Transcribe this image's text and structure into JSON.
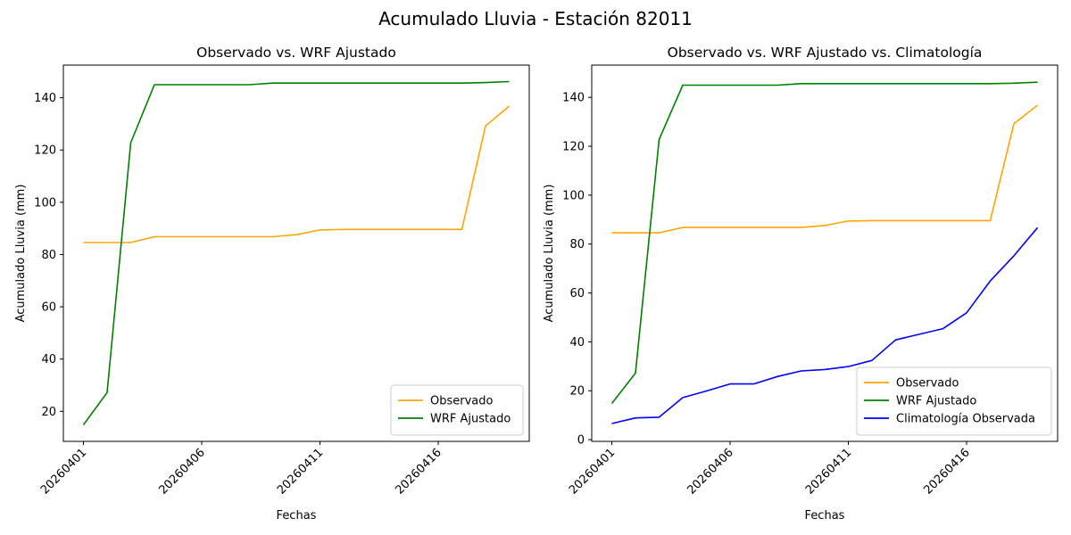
{
  "figure_title": "Acumulado Lluvia - Estación 82011",
  "chart_data": [
    {
      "type": "line",
      "title": "Observado vs. WRF Ajustado",
      "xlabel": "Fechas",
      "ylabel": "Acumulado Lluvia (mm)",
      "x": [
        "20260401",
        "20260402",
        "20260403",
        "20260404",
        "20260405",
        "20260406",
        "20260407",
        "20260408",
        "20260409",
        "20260410",
        "20260411",
        "20260412",
        "20260413",
        "20260414",
        "20260415",
        "20260416",
        "20260417",
        "20260418",
        "20260419"
      ],
      "xticks": [
        "20260401",
        "20260406",
        "20260411",
        "20260416"
      ],
      "yticks": [
        20,
        40,
        60,
        80,
        100,
        120,
        140
      ],
      "ylim": [
        8.5,
        152.5
      ],
      "legend_position": "lower-right",
      "series": [
        {
          "name": "Observado",
          "color": "#ffa500",
          "values": [
            84.6,
            84.6,
            84.6,
            86.8,
            86.8,
            86.8,
            86.8,
            86.8,
            86.8,
            87.6,
            89.4,
            89.6,
            89.6,
            89.6,
            89.6,
            89.6,
            89.6,
            129.2,
            136.8
          ]
        },
        {
          "name": "WRF Ajustado",
          "color": "#008000",
          "values": [
            14.8,
            27.2,
            122.8,
            145.0,
            145.0,
            145.0,
            145.0,
            145.0,
            145.6,
            145.6,
            145.6,
            145.6,
            145.6,
            145.6,
            145.6,
            145.6,
            145.6,
            145.8,
            146.2
          ]
        }
      ]
    },
    {
      "type": "line",
      "title": "Observado vs. WRF Ajustado vs. Climatología",
      "xlabel": "Fechas",
      "ylabel": "Acumulado Lluvia (mm)",
      "x": [
        "20260401",
        "20260402",
        "20260403",
        "20260404",
        "20260405",
        "20260406",
        "20260407",
        "20260408",
        "20260409",
        "20260410",
        "20260411",
        "20260412",
        "20260413",
        "20260414",
        "20260415",
        "20260416",
        "20260417",
        "20260418",
        "20260419"
      ],
      "xticks": [
        "20260401",
        "20260406",
        "20260411",
        "20260416"
      ],
      "yticks": [
        0,
        20,
        40,
        60,
        80,
        100,
        120,
        140
      ],
      "ylim": [
        -0.7,
        153.2
      ],
      "legend_position": "lower-right",
      "series": [
        {
          "name": "Observado",
          "color": "#ffa500",
          "values": [
            84.6,
            84.6,
            84.6,
            86.8,
            86.8,
            86.8,
            86.8,
            86.8,
            86.8,
            87.6,
            89.4,
            89.6,
            89.6,
            89.6,
            89.6,
            89.6,
            89.6,
            129.2,
            136.8
          ]
        },
        {
          "name": "WRF Ajustado",
          "color": "#008000",
          "values": [
            14.8,
            27.2,
            122.8,
            145.0,
            145.0,
            145.0,
            145.0,
            145.0,
            145.6,
            145.6,
            145.6,
            145.6,
            145.6,
            145.6,
            145.6,
            145.6,
            145.6,
            145.8,
            146.2
          ]
        },
        {
          "name": "Climatología Observada",
          "color": "#0000ff",
          "values": [
            6.6,
            8.9,
            9.2,
            17.2,
            19.9,
            22.8,
            22.8,
            25.8,
            28.1,
            28.7,
            29.9,
            32.4,
            40.8,
            43.1,
            45.4,
            51.9,
            64.9,
            75.2,
            86.7
          ]
        }
      ]
    }
  ]
}
